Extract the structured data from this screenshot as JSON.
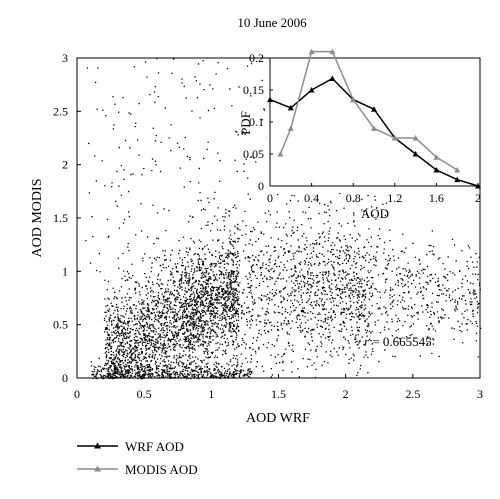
{
  "chart_data": [
    {
      "type": "scatter",
      "title": "10 June 2006",
      "xlabel": "AOD WRF",
      "ylabel": "AOD MODIS",
      "xlim": [
        0,
        3
      ],
      "ylim": [
        0,
        3
      ],
      "xticks": [
        "0",
        "0.5",
        "1",
        "1.5",
        "2",
        "2.5",
        "3"
      ],
      "yticks": [
        "0",
        "0.5",
        "1",
        "1.5",
        "2",
        "2.5",
        "3"
      ],
      "annotation": {
        "prefix": "r",
        "text": " = 0.665545",
        "value": 0.665545
      },
      "point_color": "#000000",
      "point_count_estimate": 5000,
      "grid": false
    },
    {
      "type": "line",
      "xlabel": "AOD",
      "ylabel": "PDF",
      "xlim": [
        0,
        2
      ],
      "ylim": [
        0,
        0.2
      ],
      "xticks": [
        "0",
        "0.4",
        "0.8",
        "1.2",
        "1.6",
        "2"
      ],
      "yticks": [
        "0",
        "0.05",
        "0.1",
        "0.15",
        "0.2"
      ],
      "series": [
        {
          "name": "WRF AOD",
          "color": "#000000",
          "marker": "triangle",
          "x": [
            0,
            0.2,
            0.4,
            0.6,
            0.8,
            1.0,
            1.2,
            1.4,
            1.6,
            1.8,
            2.0
          ],
          "y": [
            0.135,
            0.122,
            0.15,
            0.168,
            0.135,
            0.12,
            0.075,
            0.05,
            0.025,
            0.01,
            0.0
          ]
        },
        {
          "name": "MODIS AOD",
          "color": "#8c8c8c",
          "marker": "triangle",
          "x": [
            0.1,
            0.2,
            0.4,
            0.6,
            0.8,
            1.0,
            1.2,
            1.4,
            1.6,
            1.8
          ],
          "y": [
            0.05,
            0.09,
            0.21,
            0.21,
            0.135,
            0.09,
            0.075,
            0.075,
            0.045,
            0.025
          ]
        }
      ],
      "legend": "bottom-left",
      "grid": false
    }
  ]
}
